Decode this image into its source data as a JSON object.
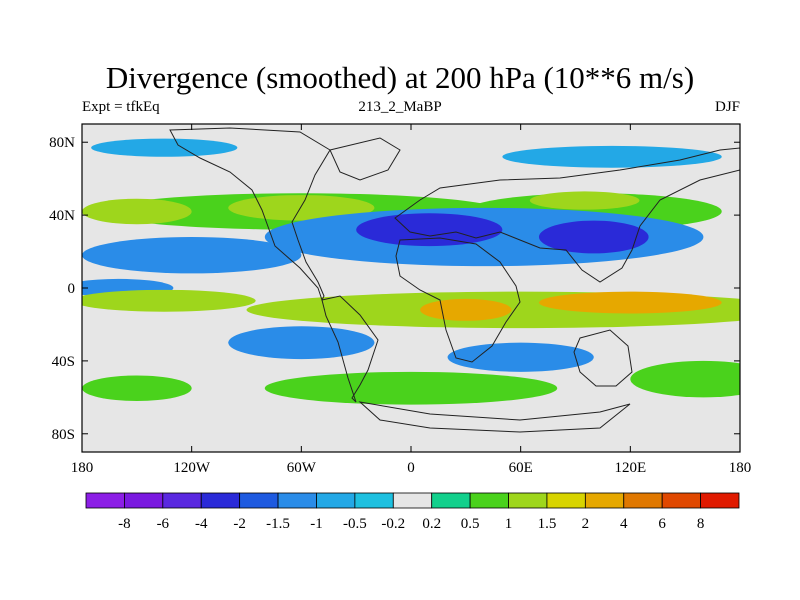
{
  "figure": {
    "title": "Divergence (smoothed) at 200 hPa (10**6 m/s)",
    "subtitle_left": "Expt = tfkEq",
    "subtitle_center": "213_2_MaBP",
    "subtitle_right": "DJF"
  },
  "chart_data": {
    "type": "heatmap",
    "map_projection": "cylindrical-equidistant",
    "x_axis": {
      "range": [
        -180,
        180
      ],
      "ticks": [
        -180,
        -120,
        -60,
        0,
        60,
        120,
        180
      ],
      "tick_labels": [
        "180",
        "120W",
        "60W",
        "0",
        "60E",
        "120E",
        "180"
      ]
    },
    "y_axis": {
      "range": [
        -90,
        90
      ],
      "ticks": [
        80,
        40,
        0,
        -40,
        -80
      ],
      "tick_labels": [
        "80N",
        "40N",
        "0",
        "40S",
        "80S"
      ]
    },
    "colorbar": {
      "orientation": "horizontal",
      "labels": [
        "-8",
        "-6",
        "-4",
        "-2",
        "-1.5",
        "-1",
        "-0.5",
        "-0.2",
        "0.2",
        "0.5",
        "1",
        "1.5",
        "2",
        "4",
        "6",
        "8"
      ],
      "colors": [
        "#8c1ee6",
        "#7a19e0",
        "#5a28e0",
        "#2a2ad8",
        "#1e5ae0",
        "#2a8ce8",
        "#23a8e6",
        "#1ec0e0",
        "#e6e6e6",
        "#12d08c",
        "#4ad21c",
        "#9ed61c",
        "#d8d400",
        "#e6a800",
        "#e07800",
        "#e04800",
        "#e01a00"
      ]
    },
    "regions": [
      {
        "value": -0.7,
        "lon": -135,
        "lat": 77,
        "rx": 40,
        "ry": 5
      },
      {
        "value": -0.7,
        "lon": 110,
        "lat": 72,
        "rx": 60,
        "ry": 6
      },
      {
        "value": 0.7,
        "lon": -60,
        "lat": 42,
        "rx": 110,
        "ry": 10
      },
      {
        "value": 1.2,
        "lon": -150,
        "lat": 42,
        "rx": 30,
        "ry": 7
      },
      {
        "value": 1.2,
        "lon": -60,
        "lat": 44,
        "rx": 40,
        "ry": 7
      },
      {
        "value": 0.7,
        "lon": 100,
        "lat": 42,
        "rx": 70,
        "ry": 10
      },
      {
        "value": 1.2,
        "lon": 95,
        "lat": 48,
        "rx": 30,
        "ry": 5
      },
      {
        "value": -1.2,
        "lon": 40,
        "lat": 28,
        "rx": 120,
        "ry": 16
      },
      {
        "value": -2.5,
        "lon": 10,
        "lat": 32,
        "rx": 40,
        "ry": 9
      },
      {
        "value": -2.5,
        "lon": 100,
        "lat": 28,
        "rx": 30,
        "ry": 9
      },
      {
        "value": -1.2,
        "lon": -120,
        "lat": 18,
        "rx": 60,
        "ry": 10
      },
      {
        "value": -1.2,
        "lon": -160,
        "lat": 0,
        "rx": 30,
        "ry": 5
      },
      {
        "value": 1.2,
        "lon": 60,
        "lat": -12,
        "rx": 150,
        "ry": 10
      },
      {
        "value": 2.5,
        "lon": 30,
        "lat": -12,
        "rx": 25,
        "ry": 6
      },
      {
        "value": 2.5,
        "lon": 120,
        "lat": -8,
        "rx": 50,
        "ry": 6
      },
      {
        "value": 1.2,
        "lon": -135,
        "lat": -7,
        "rx": 50,
        "ry": 6
      },
      {
        "value": -1.2,
        "lon": -60,
        "lat": -30,
        "rx": 40,
        "ry": 9
      },
      {
        "value": -1.2,
        "lon": 60,
        "lat": -38,
        "rx": 40,
        "ry": 8
      },
      {
        "value": 0.7,
        "lon": 0,
        "lat": -55,
        "rx": 80,
        "ry": 9
      },
      {
        "value": 0.7,
        "lon": -150,
        "lat": -55,
        "rx": 30,
        "ry": 7
      },
      {
        "value": 0.7,
        "lon": 160,
        "lat": -50,
        "rx": 40,
        "ry": 10
      }
    ]
  }
}
